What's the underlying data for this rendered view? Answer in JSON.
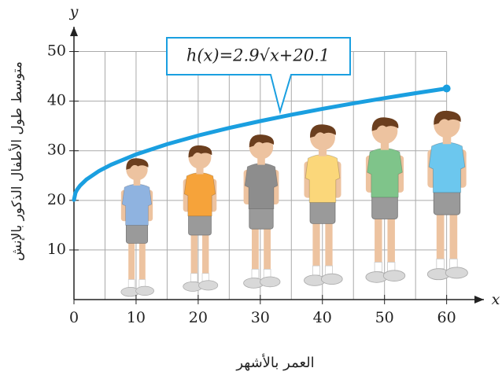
{
  "chart_data": {
    "type": "line",
    "annotation": "h(x)=2.9√x+20.1",
    "x_label": "العمر بالأشهر",
    "y_label": "متوسط طول الأطفال الذكور بالإنش",
    "x_axis_letter": "x",
    "y_axis_letter": "y",
    "x": [
      0,
      0.25,
      0.5,
      1,
      2,
      4,
      6,
      10,
      15,
      20,
      25,
      30,
      35,
      40,
      45,
      50,
      55,
      60
    ],
    "values": [
      20.1,
      21.55,
      22.15,
      23.0,
      24.2,
      25.9,
      27.2,
      29.27,
      31.33,
      33.07,
      34.6,
      35.98,
      37.26,
      38.44,
      39.55,
      40.61,
      41.61,
      42.56
    ],
    "color": "#1a9fe0",
    "xlim": [
      0,
      66
    ],
    "ylim": [
      0,
      55
    ],
    "xticks": [
      0,
      10,
      20,
      30,
      40,
      50,
      60
    ],
    "yticks": [
      10,
      20,
      30,
      40,
      50
    ],
    "grid": true
  }
}
